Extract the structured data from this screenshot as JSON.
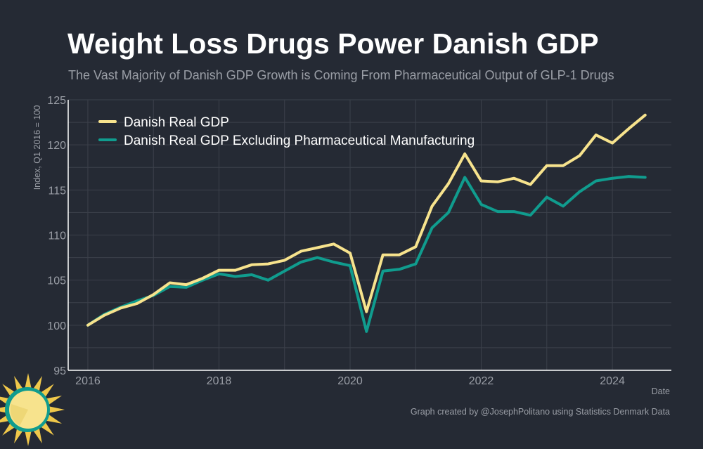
{
  "colors": {
    "background": "#252a34",
    "grid": "#3c414b",
    "axis": "#ffffff",
    "series_gdp": "#f7e38d",
    "series_ex_pharma": "#109c8e",
    "sun_face": "#f7e38d",
    "sun_rays": "#f0c84a",
    "sun_ring": "#109c8e"
  },
  "chart_data": {
    "type": "line",
    "title": "Weight Loss Drugs Power Danish GDP",
    "subtitle": "The Vast Majority of Danish GDP Growth is Coming From Pharmaceutical Output of GLP-1 Drugs",
    "xlabel": "Date",
    "ylabel": "Index, Q1 2016 = 100",
    "xlim": [
      2015.7,
      2024.9
    ],
    "ylim": [
      95,
      125
    ],
    "xticks": [
      2016,
      2018,
      2020,
      2022,
      2024
    ],
    "xtick_labels": [
      "2016",
      "2018",
      "2020",
      "2022",
      "2024"
    ],
    "yticks": [
      95,
      100,
      105,
      110,
      115,
      120,
      125
    ],
    "ytick_labels": [
      "95",
      "100",
      "105",
      "110",
      "115",
      "120",
      "125"
    ],
    "grid": true,
    "legend_position": "top-left",
    "x": [
      2016.0,
      2016.25,
      2016.5,
      2016.75,
      2017.0,
      2017.25,
      2017.5,
      2017.75,
      2018.0,
      2018.25,
      2018.5,
      2018.75,
      2019.0,
      2019.25,
      2019.5,
      2019.75,
      2020.0,
      2020.25,
      2020.5,
      2020.75,
      2021.0,
      2021.25,
      2021.5,
      2021.75,
      2022.0,
      2022.25,
      2022.5,
      2022.75,
      2023.0,
      2023.25,
      2023.5,
      2023.75,
      2024.0,
      2024.25,
      2024.5
    ],
    "series": [
      {
        "name": "Danish Real GDP",
        "values": [
          100.0,
          101.1,
          101.9,
          102.4,
          103.4,
          104.7,
          104.5,
          105.2,
          106.1,
          106.1,
          106.7,
          106.8,
          107.2,
          108.2,
          108.6,
          109.0,
          108.0,
          101.5,
          107.8,
          107.8,
          108.7,
          113.2,
          115.7,
          119.0,
          116.0,
          115.9,
          116.3,
          115.6,
          117.7,
          117.7,
          118.8,
          121.1,
          120.2,
          121.8,
          123.3
        ]
      },
      {
        "name": "Danish Real GDP Excluding Pharmaceutical Manufacturing",
        "values": [
          100.0,
          101.2,
          102.0,
          102.7,
          103.3,
          104.3,
          104.2,
          105.0,
          105.7,
          105.4,
          105.6,
          105.0,
          106.0,
          107.0,
          107.5,
          107.0,
          106.6,
          99.3,
          106.0,
          106.2,
          106.8,
          110.8,
          112.5,
          116.4,
          113.4,
          112.6,
          112.6,
          112.2,
          114.2,
          113.2,
          114.8,
          116.0,
          116.3,
          116.5,
          116.4
        ]
      }
    ],
    "credit": "Graph created by @JosephPolitano using Statistics Denmark Data"
  }
}
